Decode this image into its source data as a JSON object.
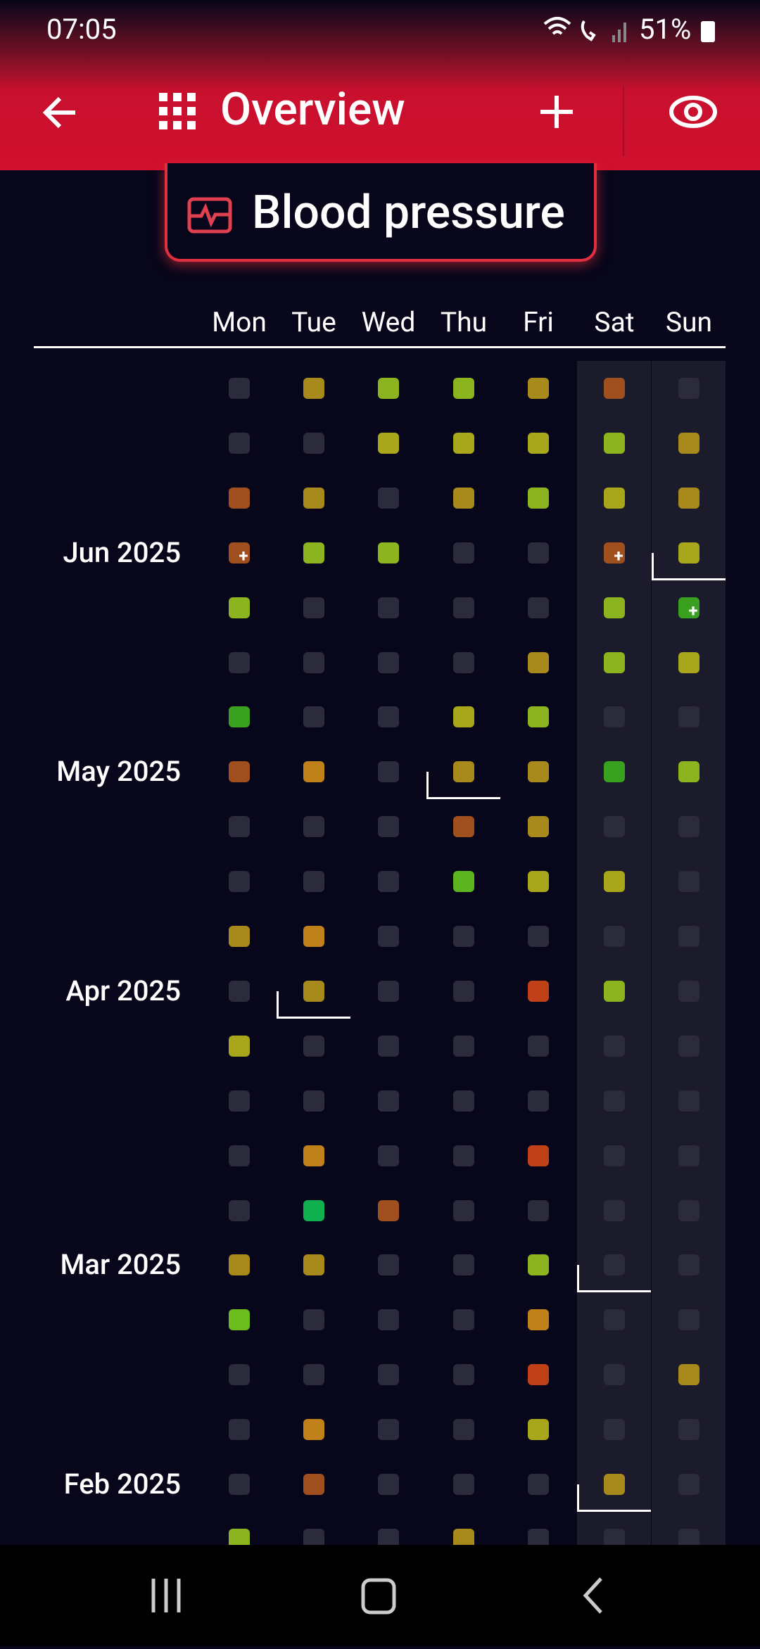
{
  "status_bar": {
    "time": "07:05",
    "battery": "51%"
  },
  "app_bar": {
    "title": "Overview"
  },
  "tab": {
    "label": "Blood pressure"
  },
  "calendar": {
    "days": [
      "Mon",
      "Tue",
      "Wed",
      "Thu",
      "Fri",
      "Sat",
      "Sun"
    ],
    "rows": [
      {
        "cells": [
          null,
          {
            "color": "#a88a1c"
          },
          {
            "color": "#8cb41e"
          },
          {
            "color": "#8cb41e"
          },
          {
            "color": "#a88a1c"
          },
          {
            "color": "#a0501e"
          },
          null
        ]
      },
      {
        "cells": [
          null,
          null,
          {
            "color": "#a8a61a"
          },
          {
            "color": "#a8a61a"
          },
          {
            "color": "#a8a61a"
          },
          {
            "color": "#8cb41e"
          },
          {
            "color": "#a88a1c"
          }
        ]
      },
      {
        "cells": [
          {
            "color": "#a0501e"
          },
          {
            "color": "#a88a1c"
          },
          null,
          {
            "color": "#a88a1c"
          },
          {
            "color": "#8cb41e"
          },
          {
            "color": "#a8a61a"
          },
          {
            "color": "#a88a1c"
          }
        ]
      },
      {
        "month": "Jun 2025",
        "cells": [
          {
            "color": "#a0501e",
            "mark": "+"
          },
          {
            "color": "#8cb41e"
          },
          {
            "color": "#8cb41e"
          },
          null,
          null,
          {
            "color": "#a0501e",
            "mark": "+"
          },
          {
            "color": "#a8a61a"
          }
        ]
      },
      {
        "cells": [
          {
            "color": "#8cb41e"
          },
          null,
          null,
          null,
          null,
          {
            "color": "#8cb41e"
          },
          {
            "color": "#3aa020",
            "mark": "+"
          }
        ]
      },
      {
        "cells": [
          null,
          null,
          null,
          null,
          {
            "color": "#a88a1c"
          },
          {
            "color": "#8cb41e"
          },
          {
            "color": "#a8a61a"
          }
        ]
      },
      {
        "cells": [
          {
            "color": "#3aa020"
          },
          null,
          null,
          {
            "color": "#a8a61a"
          },
          {
            "color": "#8cb41e"
          },
          null,
          null
        ]
      },
      {
        "month": "May 2025",
        "cells": [
          {
            "color": "#a0501e"
          },
          {
            "color": "#c0801a"
          },
          null,
          {
            "color": "#a88a1c"
          },
          {
            "color": "#a88a1c"
          },
          {
            "color": "#3aa020"
          },
          {
            "color": "#8cb41e"
          }
        ]
      },
      {
        "cells": [
          null,
          null,
          null,
          {
            "color": "#a0501e"
          },
          {
            "color": "#a88a1c"
          },
          null,
          null
        ]
      },
      {
        "cells": [
          null,
          null,
          null,
          {
            "color": "#5cb420"
          },
          {
            "color": "#a8a61a"
          },
          {
            "color": "#a8a61a"
          },
          null
        ]
      },
      {
        "cells": [
          {
            "color": "#a88a1c"
          },
          {
            "color": "#c0801a"
          },
          null,
          null,
          null,
          null,
          null
        ]
      },
      {
        "month": "Apr 2025",
        "cells": [
          null,
          {
            "color": "#a88a1c"
          },
          null,
          null,
          {
            "color": "#c04018"
          },
          {
            "color": "#8cb41e"
          },
          null
        ]
      },
      {
        "cells": [
          {
            "color": "#a8a61a"
          },
          null,
          null,
          null,
          null,
          null,
          null
        ]
      },
      {
        "cells": [
          null,
          null,
          null,
          null,
          null,
          null,
          null
        ]
      },
      {
        "cells": [
          null,
          {
            "color": "#c0801a"
          },
          null,
          null,
          {
            "color": "#c04018"
          },
          null,
          null
        ]
      },
      {
        "cells": [
          null,
          {
            "color": "#10b050"
          },
          {
            "color": "#a0501e"
          },
          null,
          null,
          null,
          null
        ]
      },
      {
        "month": "Mar 2025",
        "cells": [
          {
            "color": "#a88a1c"
          },
          {
            "color": "#a88a1c"
          },
          null,
          null,
          {
            "color": "#8cb41e"
          },
          null,
          null
        ]
      },
      {
        "cells": [
          {
            "color": "#6cbc1e"
          },
          null,
          null,
          null,
          {
            "color": "#c0801a"
          },
          null,
          null
        ]
      },
      {
        "cells": [
          null,
          null,
          null,
          null,
          {
            "color": "#c04018"
          },
          null,
          {
            "color": "#a88a1c"
          }
        ]
      },
      {
        "cells": [
          null,
          {
            "color": "#c0801a"
          },
          null,
          null,
          {
            "color": "#a8a61a"
          },
          null,
          null
        ]
      },
      {
        "month": "Feb 2025",
        "cells": [
          null,
          {
            "color": "#a0501e"
          },
          null,
          null,
          null,
          {
            "color": "#a88a1c"
          },
          null
        ]
      },
      {
        "cells": [
          {
            "color": "#8cb41e"
          },
          null,
          null,
          {
            "color": "#a88a1c"
          },
          null,
          null,
          null
        ]
      }
    ]
  }
}
